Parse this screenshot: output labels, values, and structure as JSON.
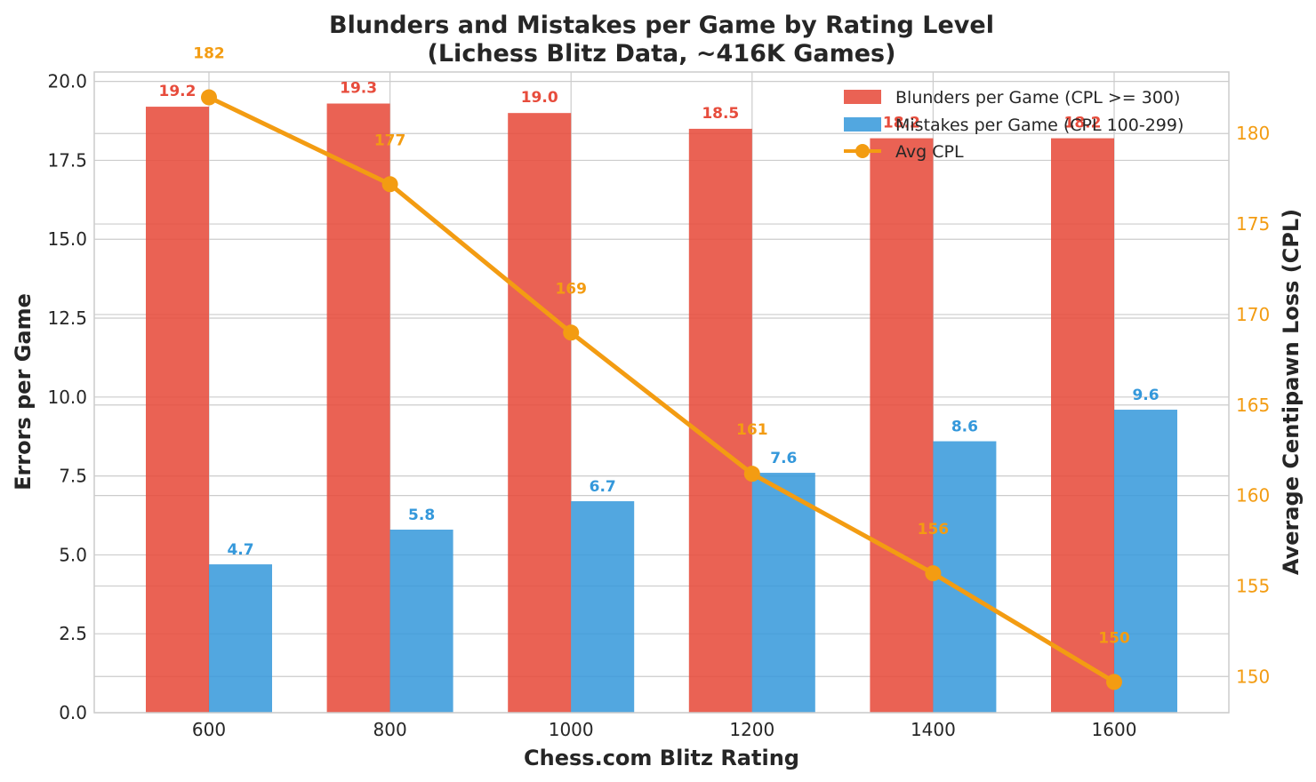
{
  "chart_data": {
    "type": "bar",
    "title": "Blunders and Mistakes per Game by Rating Level",
    "subtitle": "(Lichess Blitz Data, ~416K Games)",
    "xlabel": "Chess.com Blitz Rating",
    "ylabel": "Errors per Game",
    "y2label": "Average Centipawn Loss (CPL)",
    "categories": [
      "600",
      "800",
      "1000",
      "1200",
      "1400",
      "1600"
    ],
    "ylim": [
      0,
      20.3
    ],
    "yticks": [
      0.0,
      2.5,
      5.0,
      7.5,
      10.0,
      12.5,
      15.0,
      17.5,
      20.0
    ],
    "ytick_labels": [
      "0.0",
      "2.5",
      "5.0",
      "7.5",
      "10.0",
      "12.5",
      "15.0",
      "17.5",
      "20.0"
    ],
    "y2lim": [
      148,
      183.4
    ],
    "y2ticks": [
      150,
      155,
      160,
      165,
      170,
      175,
      180
    ],
    "y2tick_labels": [
      "150",
      "155",
      "160",
      "165",
      "170",
      "175",
      "180"
    ],
    "series": [
      {
        "name": "Blunders per Game (CPL >= 300)",
        "kind": "bar",
        "color": "#e74c3c",
        "values": [
          19.2,
          19.3,
          19.0,
          18.5,
          18.2,
          18.2
        ],
        "labels": [
          "19.2",
          "19.3",
          "19.0",
          "18.5",
          "18.2",
          "18.2"
        ]
      },
      {
        "name": "Mistakes per Game (CPL 100-299)",
        "kind": "bar",
        "color": "#3498db",
        "values": [
          4.7,
          5.8,
          6.7,
          7.6,
          8.6,
          9.6
        ],
        "labels": [
          "4.7",
          "5.8",
          "6.7",
          "7.6",
          "8.6",
          "9.6"
        ]
      },
      {
        "name": "Avg CPL",
        "kind": "line",
        "axis": "right",
        "color": "#f39c12",
        "values": [
          182,
          177.2,
          169,
          161.2,
          155.7,
          149.7
        ],
        "labels": [
          "182",
          "177",
          "169",
          "161",
          "156",
          "150"
        ]
      }
    ],
    "grid": true,
    "legend_position": "top-right"
  }
}
